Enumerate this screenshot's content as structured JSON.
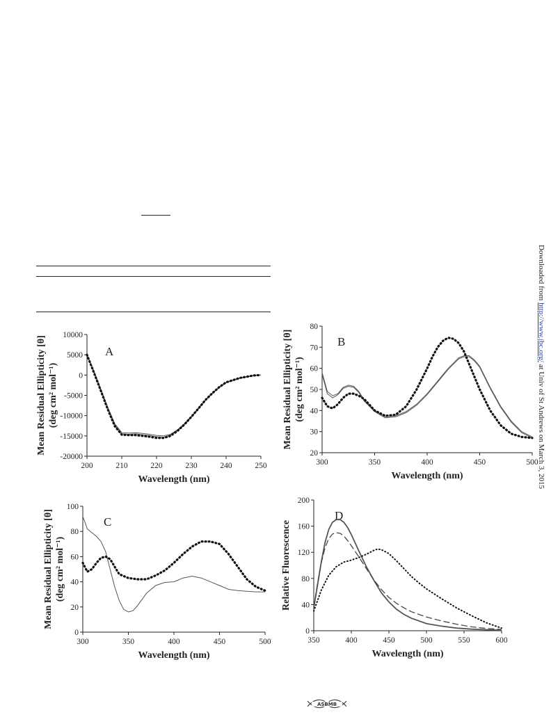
{
  "side_note": {
    "prefix": "Downloaded from ",
    "link": "http://www.jbc.org/",
    "suffix": " at Univ of St Andrews on March 3, 2015"
  },
  "logo_text": "ASBMB",
  "chart_data": [
    {
      "id": "A",
      "type": "line",
      "panel_label": "A",
      "xlabel": "Wavelength (nm)",
      "ylabel": [
        "Mean Residual Ellipticity [θ]",
        "(deg cm² mol⁻¹)"
      ],
      "xlim": [
        200,
        250
      ],
      "ylim": [
        -20000,
        10000
      ],
      "xticks": [
        200,
        210,
        220,
        230,
        240,
        250
      ],
      "yticks": [
        -20000,
        -15000,
        -10000,
        -5000,
        0,
        5000,
        10000
      ],
      "series": [
        {
          "style": "solid",
          "x": [
            200,
            202,
            204,
            206,
            208,
            210,
            212,
            214,
            216,
            218,
            220,
            222,
            224,
            226,
            228,
            230,
            232,
            234,
            236,
            238,
            240,
            244,
            248,
            250
          ],
          "y": [
            5000,
            1000,
            -3500,
            -8000,
            -12000,
            -14200,
            -14300,
            -14200,
            -14400,
            -14600,
            -14900,
            -15000,
            -14600,
            -13500,
            -12000,
            -10200,
            -8200,
            -6200,
            -4500,
            -3000,
            -1800,
            -700,
            -100,
            0
          ]
        },
        {
          "style": "solid",
          "x": [
            200,
            202,
            204,
            206,
            208,
            210,
            212,
            214,
            216,
            218,
            220,
            222,
            224,
            226,
            228,
            230,
            232,
            234,
            236,
            238,
            240,
            244,
            248,
            250
          ],
          "y": [
            5000,
            800,
            -3700,
            -8200,
            -12300,
            -14500,
            -14600,
            -14500,
            -14700,
            -14900,
            -15200,
            -15300,
            -14800,
            -13700,
            -12200,
            -10400,
            -8400,
            -6300,
            -4600,
            -3100,
            -1900,
            -800,
            -150,
            0
          ]
        },
        {
          "style": "dotted",
          "x": [
            200,
            202,
            204,
            206,
            208,
            210,
            212,
            214,
            216,
            218,
            220,
            222,
            224,
            226,
            228,
            230,
            232,
            234,
            236,
            238,
            240,
            244,
            248,
            250
          ],
          "y": [
            5000,
            600,
            -3900,
            -8500,
            -12600,
            -14700,
            -14800,
            -14800,
            -15000,
            -15200,
            -15500,
            -15500,
            -15000,
            -13800,
            -12200,
            -10300,
            -8300,
            -6200,
            -4500,
            -3000,
            -1800,
            -700,
            -100,
            0
          ]
        }
      ]
    },
    {
      "id": "B",
      "type": "line",
      "panel_label": "B",
      "xlabel": "Wavelength (nm)",
      "ylabel": [
        "Mean Residual Ellipticity [θ]",
        "(deg cm² mol⁻¹)"
      ],
      "xlim": [
        300,
        500
      ],
      "ylim": [
        20,
        80
      ],
      "xticks": [
        300,
        350,
        400,
        450,
        500
      ],
      "yticks": [
        20,
        30,
        40,
        50,
        60,
        70,
        80
      ],
      "series": [
        {
          "style": "solid",
          "x": [
            300,
            305,
            310,
            315,
            320,
            325,
            330,
            335,
            340,
            350,
            360,
            370,
            380,
            390,
            400,
            410,
            420,
            430,
            435,
            440,
            445,
            450,
            460,
            470,
            480,
            490,
            500
          ],
          "y": [
            58,
            49,
            47,
            48,
            51,
            52,
            51.5,
            49,
            45,
            40,
            37,
            37.5,
            39.5,
            43,
            48,
            54,
            60,
            65,
            66,
            66,
            64,
            61,
            51,
            42,
            35,
            30,
            27.5
          ]
        },
        {
          "style": "solid",
          "x": [
            300,
            305,
            310,
            315,
            320,
            325,
            330,
            335,
            340,
            350,
            360,
            370,
            380,
            390,
            400,
            410,
            420,
            430,
            435,
            440,
            445,
            450,
            460,
            470,
            480,
            490,
            500
          ],
          "y": [
            57,
            48,
            46,
            47.5,
            50.5,
            51.5,
            51,
            48.5,
            44.5,
            39.5,
            36.5,
            37,
            39,
            42.5,
            47.5,
            53.5,
            59.5,
            64.5,
            65.5,
            65.5,
            63.5,
            60.5,
            50.5,
            41.5,
            34.5,
            29.5,
            27
          ]
        },
        {
          "style": "dotted",
          "x": [
            300,
            305,
            310,
            315,
            320,
            325,
            330,
            335,
            340,
            350,
            360,
            370,
            380,
            390,
            400,
            405,
            410,
            415,
            420,
            425,
            430,
            435,
            440,
            450,
            460,
            470,
            480,
            490,
            500
          ],
          "y": [
            46,
            42,
            41,
            43,
            46,
            48,
            48,
            47,
            45.5,
            40,
            37.5,
            38,
            42,
            50,
            60,
            65.5,
            70,
            73,
            74.5,
            74,
            72,
            68,
            62,
            50,
            40,
            33,
            29,
            27.5,
            27
          ]
        }
      ]
    },
    {
      "id": "C",
      "type": "line",
      "panel_label": "C",
      "xlabel": "Wavelength (nm)",
      "ylabel": [
        "Mean Residual Ellipticity [θ]",
        "(deg cm² mol⁻¹)"
      ],
      "xlim": [
        300,
        500
      ],
      "ylim": [
        0,
        100
      ],
      "xticks": [
        300,
        350,
        400,
        450,
        500
      ],
      "yticks": [
        0,
        20,
        40,
        60,
        80,
        100
      ],
      "series": [
        {
          "style": "solid",
          "x": [
            300,
            305,
            310,
            315,
            320,
            325,
            330,
            335,
            340,
            345,
            350,
            355,
            360,
            370,
            380,
            390,
            400,
            410,
            420,
            430,
            440,
            450,
            460,
            470,
            480,
            490,
            500
          ],
          "y": [
            92,
            82,
            79,
            76,
            72,
            64,
            50,
            36,
            25,
            18,
            16,
            17,
            21,
            31,
            37,
            39.5,
            40,
            43,
            44.5,
            43,
            40,
            37,
            34,
            33,
            32.5,
            32,
            32
          ]
        },
        {
          "style": "dotted",
          "x": [
            300,
            305,
            310,
            315,
            320,
            325,
            330,
            335,
            340,
            350,
            360,
            370,
            380,
            390,
            400,
            410,
            420,
            430,
            440,
            450,
            460,
            470,
            480,
            490,
            500
          ],
          "y": [
            55,
            48,
            50,
            55,
            59,
            60,
            58,
            52,
            46,
            43,
            42,
            42,
            45,
            49,
            55,
            62,
            68,
            72,
            72,
            70,
            62,
            52,
            42,
            36,
            33
          ]
        }
      ]
    },
    {
      "id": "D",
      "type": "line",
      "panel_label": "D",
      "xlabel": "Wavelength (nm)",
      "ylabel": [
        "Relative Fluorescence"
      ],
      "xlim": [
        350,
        600
      ],
      "ylim": [
        0,
        200
      ],
      "xticks": [
        350,
        400,
        450,
        500,
        550,
        600
      ],
      "yticks": [
        0,
        40,
        80,
        120,
        160,
        200
      ],
      "series": [
        {
          "style": "solid",
          "x": [
            350,
            355,
            360,
            365,
            370,
            375,
            380,
            385,
            390,
            395,
            400,
            410,
            420,
            430,
            440,
            450,
            460,
            470,
            480,
            500,
            520,
            540,
            560,
            580,
            600
          ],
          "y": [
            35,
            70,
            105,
            135,
            155,
            166,
            170,
            170,
            166,
            158,
            147,
            122,
            98,
            77,
            58,
            44,
            33,
            25,
            19,
            11,
            7,
            4,
            2.5,
            1.5,
            1
          ]
        },
        {
          "style": "dashed",
          "x": [
            350,
            355,
            360,
            365,
            370,
            375,
            380,
            385,
            390,
            395,
            400,
            410,
            420,
            430,
            440,
            450,
            460,
            470,
            480,
            500,
            520,
            540,
            560,
            580,
            600
          ],
          "y": [
            35,
            72,
            104,
            127,
            141,
            148,
            150,
            149,
            145,
            138,
            130,
            113,
            95,
            78,
            63,
            51,
            42,
            35,
            29,
            21,
            15,
            10,
            6,
            3.5,
            2
          ]
        },
        {
          "style": "dotted",
          "x": [
            350,
            360,
            370,
            380,
            390,
            400,
            410,
            420,
            430,
            435,
            440,
            450,
            460,
            470,
            480,
            490,
            500,
            520,
            540,
            560,
            580,
            600
          ],
          "y": [
            30,
            62,
            85,
            98,
            105,
            108,
            112,
            117,
            123,
            125,
            124,
            118,
            107,
            95,
            83,
            73,
            64,
            49,
            35,
            23,
            12,
            4
          ]
        }
      ]
    }
  ]
}
